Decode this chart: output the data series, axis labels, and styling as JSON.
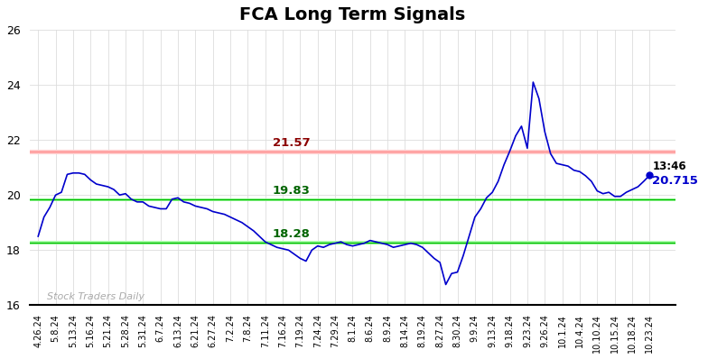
{
  "title": "FCA Long Term Signals",
  "title_fontsize": 14,
  "title_fontweight": "bold",
  "ylim": [
    16,
    26
  ],
  "yticks": [
    16,
    18,
    20,
    22,
    24,
    26
  ],
  "red_line": 21.57,
  "green_line_upper": 19.83,
  "green_line_lower": 18.28,
  "last_value": 20.715,
  "last_time": "13:46",
  "watermark": "Stock Traders Daily",
  "line_color": "#0000cc",
  "red_line_color": "#ff8888",
  "green_line_color": "#00bb00",
  "red_band_alpha": 0.25,
  "green_band_alpha": 0.3,
  "x_labels": [
    "4.26.24",
    "5.8.24",
    "5.13.24",
    "5.16.24",
    "5.21.24",
    "5.28.24",
    "5.31.24",
    "6.7.24",
    "6.13.24",
    "6.21.24",
    "6.27.24",
    "7.2.24",
    "7.8.24",
    "7.11.24",
    "7.16.24",
    "7.19.24",
    "7.24.24",
    "7.29.24",
    "8.1.24",
    "8.6.24",
    "8.9.24",
    "8.14.24",
    "8.19.24",
    "8.27.24",
    "8.30.24",
    "9.9.24",
    "9.13.24",
    "9.18.24",
    "9.23.24",
    "9.26.24",
    "10.1.24",
    "10.4.24",
    "10.10.24",
    "10.15.24",
    "10.18.24",
    "10.23.24"
  ],
  "y_values": [
    18.5,
    19.2,
    19.55,
    20.0,
    20.1,
    20.75,
    20.8,
    20.8,
    20.75,
    20.55,
    20.4,
    20.35,
    20.3,
    20.2,
    20.0,
    20.05,
    19.85,
    19.75,
    19.75,
    19.6,
    19.55,
    19.5,
    19.5,
    19.85,
    19.9,
    19.75,
    19.7,
    19.6,
    19.55,
    19.5,
    19.4,
    19.35,
    19.3,
    19.2,
    19.1,
    19.0,
    18.85,
    18.7,
    18.5,
    18.3,
    18.2,
    18.1,
    18.05,
    18.0,
    17.85,
    17.7,
    17.6,
    18.0,
    18.15,
    18.1,
    18.2,
    18.25,
    18.3,
    18.2,
    18.15,
    18.2,
    18.25,
    18.35,
    18.3,
    18.25,
    18.2,
    18.1,
    18.15,
    18.2,
    18.25,
    18.2,
    18.1,
    17.9,
    17.7,
    17.55,
    16.75,
    17.15,
    17.2,
    17.8,
    18.5,
    19.2,
    19.5,
    19.9,
    20.1,
    20.5,
    21.1,
    21.6,
    22.15,
    22.5,
    21.7,
    24.1,
    23.5,
    22.3,
    21.5,
    21.15,
    21.1,
    21.05,
    20.9,
    20.85,
    20.7,
    20.5,
    20.15,
    20.05,
    20.1,
    19.95,
    19.95,
    20.1,
    20.2,
    20.3,
    20.5,
    20.715
  ]
}
